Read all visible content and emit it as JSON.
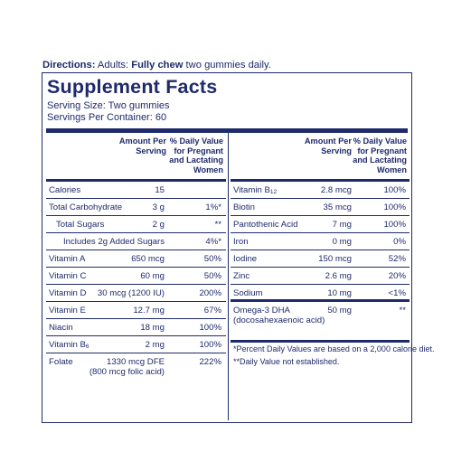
{
  "directions": {
    "label": "Directions:",
    "pre": " Adults: ",
    "bold": "Fully chew",
    "post": " two gummies daily."
  },
  "panel": {
    "title": "Supplement Facts",
    "serving_size": "Serving Size: Two gummies",
    "servings_per_container": "Servings Per Container: 60"
  },
  "headers": {
    "amount_line1": "Amount Per",
    "amount_line2": "Serving",
    "dv_line1": "% Daily Value",
    "dv_line2": "for Pregnant",
    "dv_line3": "and Lactating",
    "dv_line4": "Women"
  },
  "left_rows": [
    {
      "name": "Calories",
      "amount": "15",
      "dv": ""
    },
    {
      "name": "Total Carbohydrate",
      "amount": "3 g",
      "dv": "1%*"
    },
    {
      "name": "Total Sugars",
      "amount": "2 g",
      "dv": "**"
    },
    {
      "name": "Includes 2g Added Sugars",
      "amount": "",
      "dv": "4%*"
    },
    {
      "name": "Vitamin A",
      "amount": "650 mcg",
      "dv": "50%"
    },
    {
      "name": "Vitamin C",
      "amount": "60 mg",
      "dv": "50%"
    },
    {
      "name": "Vitamin D",
      "amount": "30 mcg (1200 IU)",
      "dv": "200%"
    },
    {
      "name": "Vitamin E",
      "amount": "12.7 mg",
      "dv": "67%"
    },
    {
      "name": "Niacin",
      "amount": "18 mg",
      "dv": "100%"
    },
    {
      "name": "Vitamin B",
      "sub": "6",
      "amount": "2 mg",
      "dv": "100%"
    },
    {
      "name": "Folate",
      "amount": "1330 mcg DFE",
      "amount2": "(800 mcg folic acid)",
      "dv": "222%"
    }
  ],
  "right_rows": [
    {
      "name": "Vitamin B",
      "sub": "12",
      "amount": "2.8 mcg",
      "dv": "100%"
    },
    {
      "name": "Biotin",
      "amount": "35 mcg",
      "dv": "100%"
    },
    {
      "name": "Pantothenic Acid",
      "amount": "7 mg",
      "dv": "100%"
    },
    {
      "name": "Iron",
      "amount": "0 mg",
      "dv": "0%"
    },
    {
      "name": "Iodine",
      "amount": "150 mcg",
      "dv": "52%"
    },
    {
      "name": "Zinc",
      "amount": "2.6 mg",
      "dv": "20%"
    },
    {
      "name": "Sodium",
      "amount": "10 mg",
      "dv": "<1%"
    },
    {
      "name": "Omega-3 DHA",
      "name2": "(docosahexaenoic acid)",
      "amount": "50 mg",
      "dv": "**"
    }
  ],
  "footnotes": {
    "note1": "*Percent Daily Values are based on a 2,000 calorie diet.",
    "note2": "**Daily Value not established."
  }
}
